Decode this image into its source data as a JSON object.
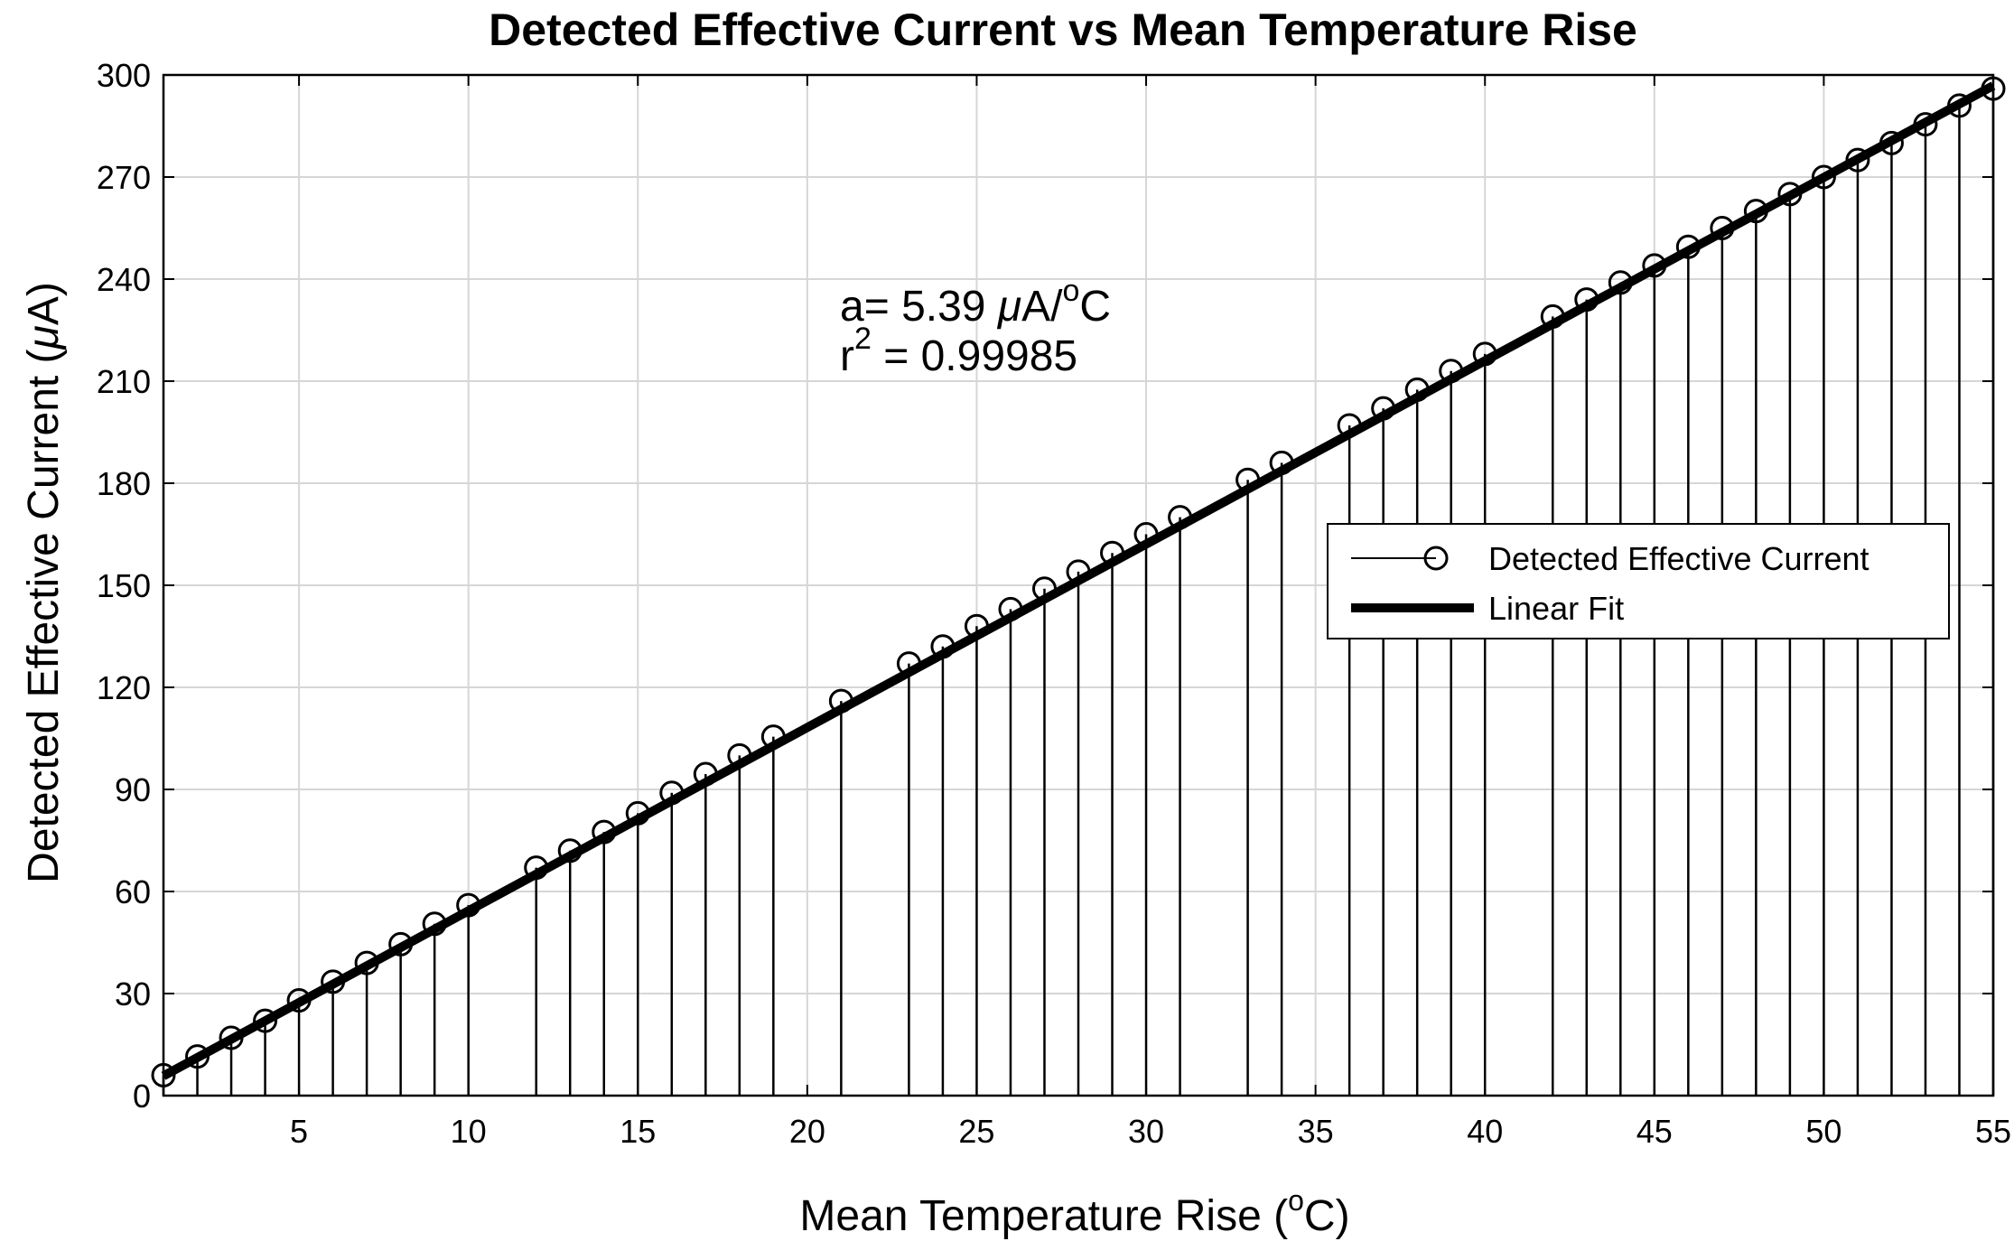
{
  "chart_data": {
    "type": "line",
    "title": "Detected Effective Current vs Mean Temperature Rise",
    "xlabel": "Mean Temperature Rise (°C)",
    "xlabel_parts": {
      "before": "Mean Temperature Rise (",
      "sup": "o",
      "after": "C)"
    },
    "ylabel": "Detected Effective Current  (μA)",
    "ylabel_parts": {
      "before": "Detected Effective Current  (",
      "mu": "μ",
      "after": "A)"
    },
    "xlim": [
      1,
      55
    ],
    "ylim": [
      0,
      300
    ],
    "xticks": [
      5,
      10,
      15,
      20,
      25,
      30,
      35,
      40,
      45,
      50,
      55
    ],
    "yticks": [
      0,
      30,
      60,
      90,
      120,
      150,
      180,
      210,
      240,
      270,
      300
    ],
    "grid": true,
    "legend_position": "right",
    "annotation": {
      "line1": {
        "before": "a",
        "after": "= 5.39 ",
        "mu": "μ",
        "unit": "A/",
        "sup": "o",
        "end": "C"
      },
      "line2": {
        "before": "r",
        "sup": "2",
        "after": " = 0.99985"
      }
    },
    "series": [
      {
        "name": "Detected Effective Current",
        "style": "stem-circle",
        "x": [
          1,
          2,
          3,
          4,
          5,
          6,
          7,
          8,
          9,
          10,
          12,
          13,
          14,
          15,
          16,
          17,
          18,
          19,
          21,
          23,
          24,
          25,
          26,
          27,
          28,
          29,
          30,
          31,
          33,
          34,
          36,
          37,
          38,
          39,
          40,
          42,
          43,
          44,
          45,
          46,
          47,
          48,
          49,
          50,
          51,
          52,
          53,
          54,
          55
        ],
        "y": [
          6,
          11.5,
          17,
          22,
          28,
          33.5,
          39,
          44.5,
          50.5,
          56,
          67,
          72,
          77.5,
          83,
          89,
          94.5,
          100,
          105.5,
          116,
          127,
          132,
          138,
          143,
          149,
          154,
          159.5,
          165,
          170,
          181,
          186,
          197,
          202,
          207.5,
          213,
          218,
          229,
          234,
          239,
          244,
          249.5,
          255,
          260,
          265,
          270,
          275,
          280,
          285.5,
          291,
          296
        ]
      },
      {
        "name": "Linear Fit",
        "style": "thick-line",
        "slope": 5.39,
        "intercept": 0.4
      }
    ]
  }
}
